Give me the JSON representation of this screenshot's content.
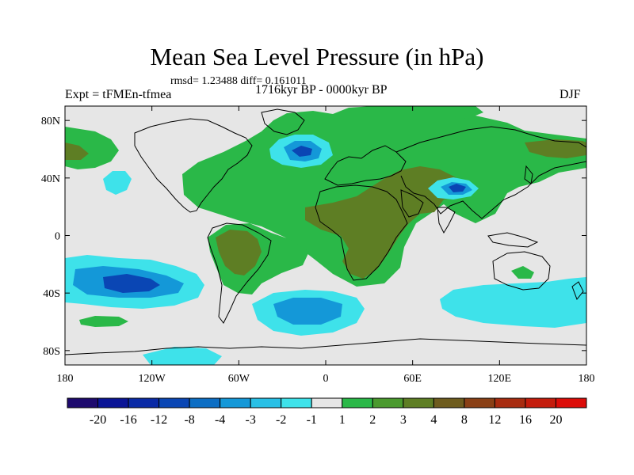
{
  "plot": {
    "title": "Mean Sea Level Pressure (in hPa)",
    "stats": "rmsd= 1.23488 diff= 0.161011",
    "left_label": "Expt = tFMEn-tfmea",
    "center_label": "1716kyr BP - 0000kyr BP",
    "right_label": "DJF"
  },
  "axes": {
    "x_ticks": [
      "180",
      "120W",
      "60W",
      "0",
      "60E",
      "120E",
      "180"
    ],
    "x_values": [
      -180,
      -120,
      -60,
      0,
      60,
      120,
      180
    ],
    "y_ticks": [
      "80N",
      "40N",
      "0",
      "40S",
      "80S"
    ],
    "y_values": [
      80,
      40,
      0,
      -40,
      -80
    ],
    "lon_range": [
      -180,
      180
    ],
    "lat_range": [
      -90,
      90
    ]
  },
  "colorbar": {
    "labels": [
      "-20",
      "-16",
      "-12",
      "-8",
      "-4",
      "-3",
      "-2",
      "-1",
      "1",
      "2",
      "3",
      "4",
      "8",
      "12",
      "16",
      "20"
    ],
    "colors": [
      "#1e0a6e",
      "#0a1496",
      "#0a2aa6",
      "#0a46b4",
      "#0c6ec4",
      "#1498d8",
      "#28c0e6",
      "#3ee2ea",
      "#e6e6e6",
      "#2ab848",
      "#4a9a2e",
      "#5e7e24",
      "#6e5c1e",
      "#8a4016",
      "#a82c10",
      "#c41c0c",
      "#dc0c08"
    ]
  },
  "colors": {
    "background": "#e6e6e6",
    "positive": "#2ab848",
    "positive_strong": "#5e7e24",
    "negative": "#3ee2ea",
    "negative_mid": "#1498d8",
    "negative_strong": "#0a46b4",
    "coast": "#000000"
  }
}
